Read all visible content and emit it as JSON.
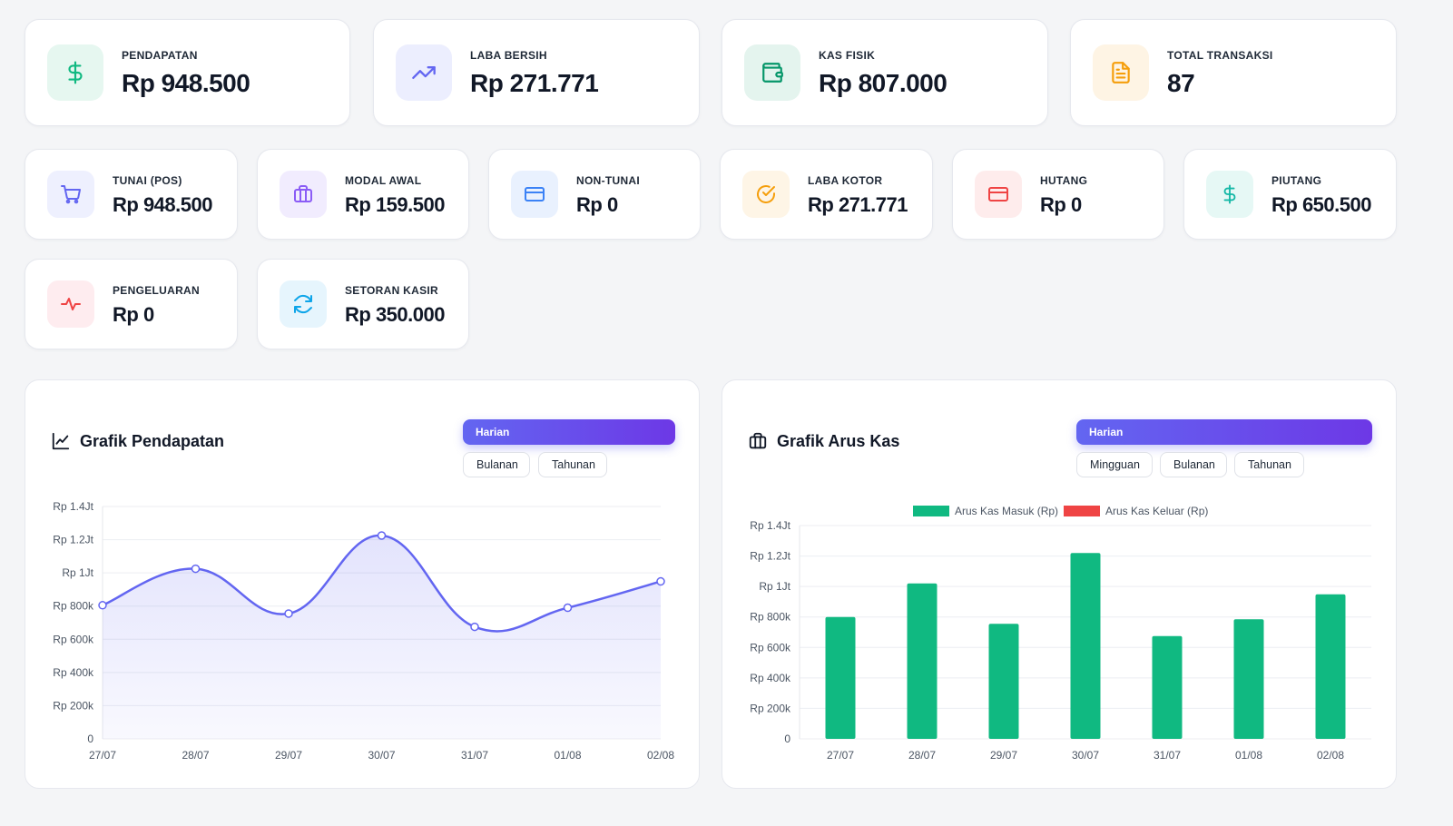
{
  "stats_top": [
    {
      "name": "pendapatan",
      "label": "PENDAPATAN",
      "value": "Rp 948.500",
      "icon": "dollar-icon",
      "color": "#10b981",
      "bg": "#e6f7f0"
    },
    {
      "name": "laba-bersih",
      "label": "LABA BERSIH",
      "value": "Rp 271.771",
      "icon": "trending-up-icon",
      "color": "#6366f1",
      "bg": "#eceefe"
    },
    {
      "name": "kas-fisik",
      "label": "KAS FISIK",
      "value": "Rp 807.000",
      "icon": "wallet-icon",
      "color": "#059669",
      "bg": "#e4f4ee"
    },
    {
      "name": "total-transaksi",
      "label": "TOTAL TRANSAKSI",
      "value": "87",
      "icon": "document-icon",
      "color": "#f59e0b",
      "bg": "#fef4e4"
    }
  ],
  "stats_mid": [
    {
      "name": "tunai-pos",
      "label": "TUNAI (POS)",
      "value": "Rp 948.500",
      "icon": "cart-icon",
      "color": "#6366f1",
      "bg": "#eef0fe"
    },
    {
      "name": "modal-awal",
      "label": "MODAL AWAL",
      "value": "Rp 159.500",
      "icon": "briefcase-icon",
      "color": "#8b5cf6",
      "bg": "#f1ecfe"
    },
    {
      "name": "non-tunai",
      "label": "NON-TUNAI",
      "value": "Rp 0",
      "icon": "card-icon",
      "color": "#3b82f6",
      "bg": "#e9f1fe"
    },
    {
      "name": "laba-kotor",
      "label": "LABA KOTOR",
      "value": "Rp 271.771",
      "icon": "check-circle-icon",
      "color": "#f59e0b",
      "bg": "#fef5e6"
    },
    {
      "name": "hutang",
      "label": "HUTANG",
      "value": "Rp 0",
      "icon": "card-icon",
      "color": "#ef4444",
      "bg": "#feecec"
    },
    {
      "name": "piutang",
      "label": "PIUTANG",
      "value": "Rp 650.500",
      "icon": "dollar-icon",
      "color": "#14b8a6",
      "bg": "#e6f8f5"
    }
  ],
  "stats_low": [
    {
      "name": "pengeluaran",
      "label": "PENGELUARAN",
      "value": "Rp 0",
      "icon": "activity-icon",
      "color": "#ef4444",
      "bg": "#feecef"
    },
    {
      "name": "setoran-kasir",
      "label": "SETORAN KASIR",
      "value": "Rp 350.000",
      "icon": "refresh-icon",
      "color": "#0ea5e9",
      "bg": "#e6f5fd"
    }
  ],
  "chart_pendapatan": {
    "title": "Grafik Pendapatan",
    "tabs": {
      "active": "Harian",
      "others": [
        "Bulanan",
        "Tahunan"
      ]
    }
  },
  "chart_arus_kas": {
    "title": "Grafik Arus Kas",
    "tabs": {
      "active": "Harian",
      "others": [
        "Mingguan",
        "Bulanan",
        "Tahunan"
      ]
    }
  },
  "chart_data": [
    {
      "type": "line",
      "title": "Grafik Pendapatan",
      "x": [
        "27/07",
        "28/07",
        "29/07",
        "30/07",
        "31/07",
        "01/08",
        "02/08"
      ],
      "series": [
        {
          "values": [
            805000,
            1025000,
            755000,
            1225000,
            675000,
            790000,
            948500
          ],
          "color": "#6366f1"
        }
      ],
      "ylim": [
        0,
        1400000
      ],
      "yticks": [
        0,
        200000,
        400000,
        600000,
        800000,
        1000000,
        1200000,
        1400000
      ],
      "ytick_labels": [
        "0",
        "Rp 200k",
        "Rp 400k",
        "Rp 600k",
        "Rp 800k",
        "Rp 1Jt",
        "Rp 1.2Jt",
        "Rp 1.4Jt"
      ],
      "grid": true,
      "legend": "none"
    },
    {
      "type": "bar",
      "title": "Grafik Arus Kas",
      "categories": [
        "27/07",
        "28/07",
        "29/07",
        "30/07",
        "31/07",
        "01/08",
        "02/08"
      ],
      "series": [
        {
          "name": "Arus Kas Masuk (Rp)",
          "values": [
            800000,
            1020000,
            755000,
            1220000,
            675000,
            785000,
            948500
          ],
          "color": "#10b981"
        },
        {
          "name": "Arus Kas Keluar (Rp)",
          "values": [
            0,
            0,
            0,
            0,
            0,
            0,
            0
          ],
          "color": "#ef4444"
        }
      ],
      "ylim": [
        0,
        1400000
      ],
      "yticks": [
        0,
        200000,
        400000,
        600000,
        800000,
        1000000,
        1200000,
        1400000
      ],
      "ytick_labels": [
        "0",
        "Rp 200k",
        "Rp 400k",
        "Rp 600k",
        "Rp 800k",
        "Rp 1Jt",
        "Rp 1.2Jt",
        "Rp 1.4Jt"
      ],
      "grid": true,
      "legend": "top"
    }
  ]
}
